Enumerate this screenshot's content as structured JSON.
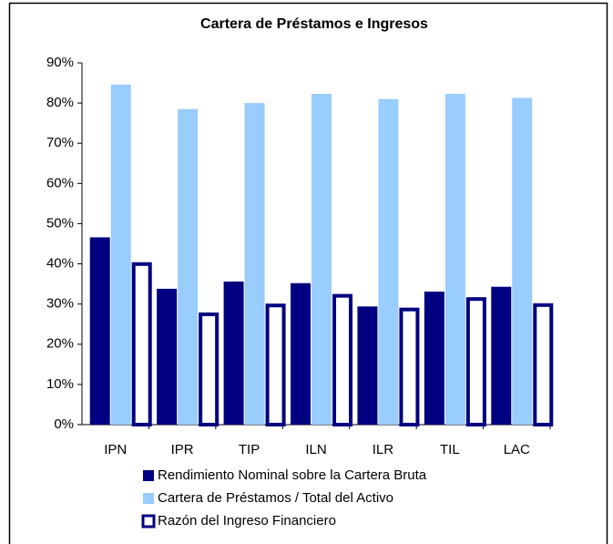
{
  "chart_data": {
    "type": "bar",
    "title": "Cartera de Préstamos e Ingresos",
    "categories": [
      "IPN",
      "IPR",
      "TIP",
      "ILN",
      "ILR",
      "TIL",
      "LAC"
    ],
    "series": [
      {
        "name": "Rendimiento Nominal sobre la Cartera Bruta",
        "color": "#000080",
        "values": [
          46.6,
          33.8,
          35.6,
          35.2,
          29.4,
          33.1,
          34.3
        ]
      },
      {
        "name": "Cartera de Préstamos / Total del Activo",
        "color": "#99ccff",
        "values": [
          84.6,
          78.5,
          80.0,
          82.3,
          81.0,
          82.3,
          81.3
        ]
      },
      {
        "name": "Razón del Ingreso Financiero",
        "color": "#ffffff",
        "stroke": "#000080",
        "values": [
          40.4,
          27.9,
          30.1,
          32.5,
          29.1,
          31.7,
          30.2
        ]
      }
    ],
    "ylim": [
      0,
      90
    ],
    "yticks": [
      {
        "value": 0,
        "label": "0%"
      },
      {
        "value": 10,
        "label": "10%"
      },
      {
        "value": 20,
        "label": "20%"
      },
      {
        "value": 30,
        "label": "30%"
      },
      {
        "value": 40,
        "label": "40%"
      },
      {
        "value": 50,
        "label": "50%"
      },
      {
        "value": 60,
        "label": "60%"
      },
      {
        "value": 70,
        "label": "70%"
      },
      {
        "value": 80,
        "label": "80%"
      },
      {
        "value": 90,
        "label": "90%"
      }
    ],
    "grid": false,
    "legend": "bottom"
  }
}
